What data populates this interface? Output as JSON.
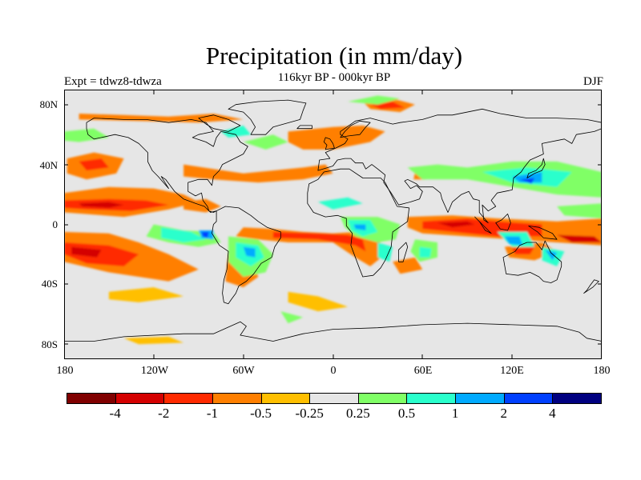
{
  "header": {
    "title": "Precipitation (in mm/day)",
    "subtitle": "116kyr BP - 000kyr BP",
    "left_label": "Expt = tdwz8-tdwza",
    "right_label": "DJF"
  },
  "axes": {
    "y_ticks": [
      "80N",
      "40N",
      "0",
      "40S",
      "80S"
    ],
    "x_ticks": [
      "180",
      "120W",
      "60W",
      "0",
      "60E",
      "120E",
      "180"
    ]
  },
  "colorbar": {
    "colors": [
      "#800000",
      "#d40000",
      "#ff2a00",
      "#ff7f00",
      "#ffbf00",
      "#e6e6e6",
      "#80ff66",
      "#2affcc",
      "#00aaff",
      "#0040ff",
      "#000080"
    ],
    "labels": [
      "-4",
      "-2",
      "-1",
      "-0.5",
      "-0.25",
      "0.25",
      "0.5",
      "1",
      "2",
      "4"
    ]
  },
  "map": {
    "background": "#e6e6e6",
    "coast_color": "#000000"
  }
}
